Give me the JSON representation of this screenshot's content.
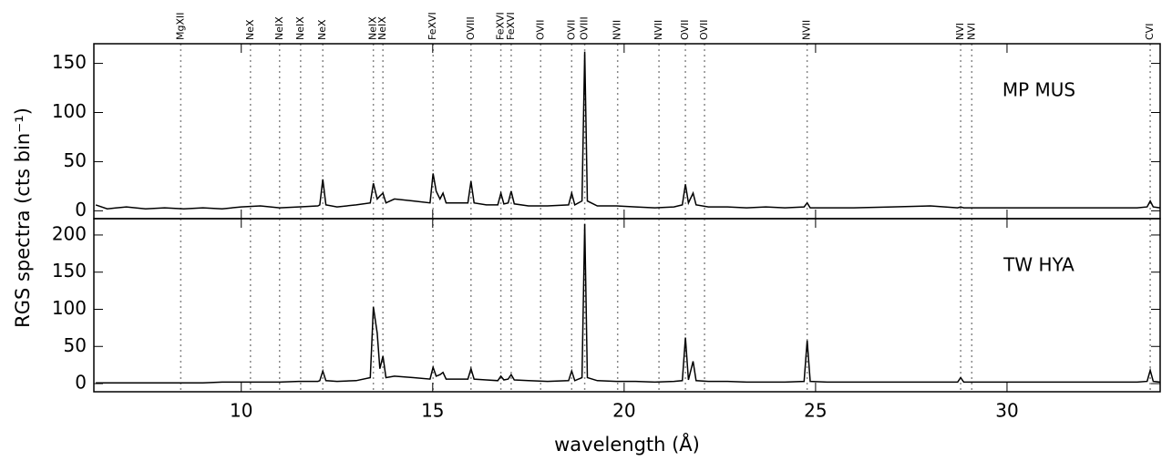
{
  "chart_data": [
    {
      "type": "line",
      "title": "MP MUS",
      "y_label": "RGS spectra (cts bin⁻¹)",
      "color": "#000000",
      "lines": [
        {
          "label": "MgXII",
          "x": 8.42
        },
        {
          "label": "NeX",
          "x": 10.24
        },
        {
          "label": "NeIX",
          "x": 11.0
        },
        {
          "label": "NeIX",
          "x": 11.55
        },
        {
          "label": "NeX",
          "x": 12.13
        },
        {
          "label": "NeIX",
          "x": 13.45
        },
        {
          "label": "NeIX",
          "x": 13.7
        },
        {
          "label": "FeXVI",
          "x": 15.01
        },
        {
          "label": "OVIII",
          "x": 16.0
        },
        {
          "label": "FeXVI",
          "x": 16.78
        },
        {
          "label": "FeXVI",
          "x": 17.05
        },
        {
          "label": "OVII",
          "x": 17.82
        },
        {
          "label": "OVII",
          "x": 18.63
        },
        {
          "label": "OVIII",
          "x": 18.97
        },
        {
          "label": "NVII",
          "x": 19.83
        },
        {
          "label": "NVII",
          "x": 20.91
        },
        {
          "label": "OVII",
          "x": 21.6
        },
        {
          "label": "OVII",
          "x": 22.1
        },
        {
          "label": "NVII",
          "x": 24.78
        },
        {
          "label": "NVI",
          "x": 28.79
        },
        {
          "label": "NVI",
          "x": 29.08
        },
        {
          "label": "CVI",
          "x": 33.74
        }
      ],
      "x": [
        6.2,
        6.5,
        7.0,
        7.5,
        8.0,
        8.5,
        9.0,
        9.5,
        10.0,
        10.5,
        11.0,
        11.5,
        12.0,
        12.05,
        12.13,
        12.21,
        12.5,
        13.0,
        13.37,
        13.45,
        13.55,
        13.62,
        13.7,
        13.78,
        14.0,
        14.5,
        14.93,
        15.01,
        15.09,
        15.19,
        15.27,
        15.35,
        15.6,
        15.92,
        16.0,
        16.08,
        16.4,
        16.7,
        16.78,
        16.86,
        16.97,
        17.05,
        17.13,
        17.5,
        18.0,
        18.55,
        18.63,
        18.71,
        18.9,
        18.97,
        19.04,
        19.3,
        19.8,
        20.3,
        20.8,
        21.3,
        21.52,
        21.6,
        21.68,
        21.8,
        21.88,
        22.2,
        22.7,
        23.2,
        23.7,
        24.2,
        24.7,
        24.78,
        24.86,
        25.3,
        26,
        27,
        28,
        28.71,
        28.79,
        28.87,
        29.5,
        30.5,
        31.5,
        32.5,
        33.4,
        33.66,
        33.74,
        33.82,
        34.0
      ],
      "values": [
        6,
        2,
        4,
        2,
        3,
        2,
        3,
        2,
        4,
        5,
        3,
        4,
        5,
        6,
        32,
        6,
        4,
        6,
        8,
        28,
        12,
        15,
        18,
        8,
        12,
        10,
        8,
        38,
        20,
        12,
        18,
        8,
        8,
        8,
        30,
        8,
        6,
        6,
        18,
        7,
        8,
        20,
        7,
        5,
        5,
        6,
        18,
        6,
        10,
        162,
        10,
        5,
        5,
        4,
        3,
        4,
        6,
        27,
        8,
        18,
        6,
        4,
        4,
        3,
        4,
        3,
        4,
        8,
        3,
        3,
        3,
        4,
        5,
        3,
        4,
        3,
        3,
        3,
        3,
        3,
        3,
        4,
        10,
        4,
        3
      ],
      "xlim": [
        6.15,
        34.0
      ],
      "xticks": [
        10,
        15,
        20,
        25,
        30
      ],
      "ylim": [
        -8,
        170
      ],
      "yticks": [
        0,
        50,
        100,
        150
      ]
    },
    {
      "type": "line",
      "title": "TW HYA",
      "x_label": "wavelength (Å)",
      "color": "#000000",
      "x": [
        6.2,
        6.5,
        7.0,
        7.5,
        8.0,
        8.5,
        9.0,
        9.5,
        10.0,
        10.5,
        11.0,
        11.5,
        12.0,
        12.05,
        12.13,
        12.21,
        12.5,
        13.0,
        13.37,
        13.45,
        13.55,
        13.62,
        13.7,
        13.78,
        14.0,
        14.5,
        14.93,
        15.01,
        15.09,
        15.19,
        15.27,
        15.35,
        15.6,
        15.92,
        16.0,
        16.08,
        16.4,
        16.7,
        16.78,
        16.86,
        16.97,
        17.05,
        17.13,
        17.5,
        18.0,
        18.55,
        18.63,
        18.71,
        18.9,
        18.97,
        19.04,
        19.3,
        19.8,
        20.3,
        20.8,
        21.3,
        21.52,
        21.6,
        21.68,
        21.8,
        21.88,
        22.2,
        22.7,
        23.2,
        23.7,
        24.2,
        24.7,
        24.78,
        24.86,
        25.3,
        26,
        27,
        28,
        28.71,
        28.79,
        28.87,
        29.5,
        30.5,
        31.5,
        32.5,
        33.4,
        33.66,
        33.74,
        33.82,
        34.0
      ],
      "values": [
        1,
        1,
        1,
        1,
        1,
        1,
        1,
        2,
        2,
        2,
        2,
        3,
        3,
        4,
        17,
        4,
        3,
        4,
        8,
        103,
        68,
        20,
        37,
        8,
        10,
        8,
        6,
        22,
        10,
        12,
        15,
        6,
        6,
        6,
        20,
        6,
        5,
        4,
        10,
        5,
        6,
        12,
        5,
        4,
        3,
        4,
        17,
        4,
        8,
        215,
        8,
        4,
        3,
        3,
        2,
        3,
        4,
        62,
        5,
        30,
        4,
        3,
        3,
        2,
        2,
        2,
        3,
        58,
        3,
        2,
        2,
        2,
        2,
        2,
        8,
        2,
        2,
        2,
        2,
        2,
        2,
        3,
        18,
        3,
        2
      ],
      "xlim": [
        6.15,
        34.0
      ],
      "xticks": [
        10,
        15,
        20,
        25,
        30
      ],
      "ylim": [
        -11,
        222
      ],
      "yticks": [
        0,
        50,
        100,
        150,
        200
      ]
    }
  ]
}
